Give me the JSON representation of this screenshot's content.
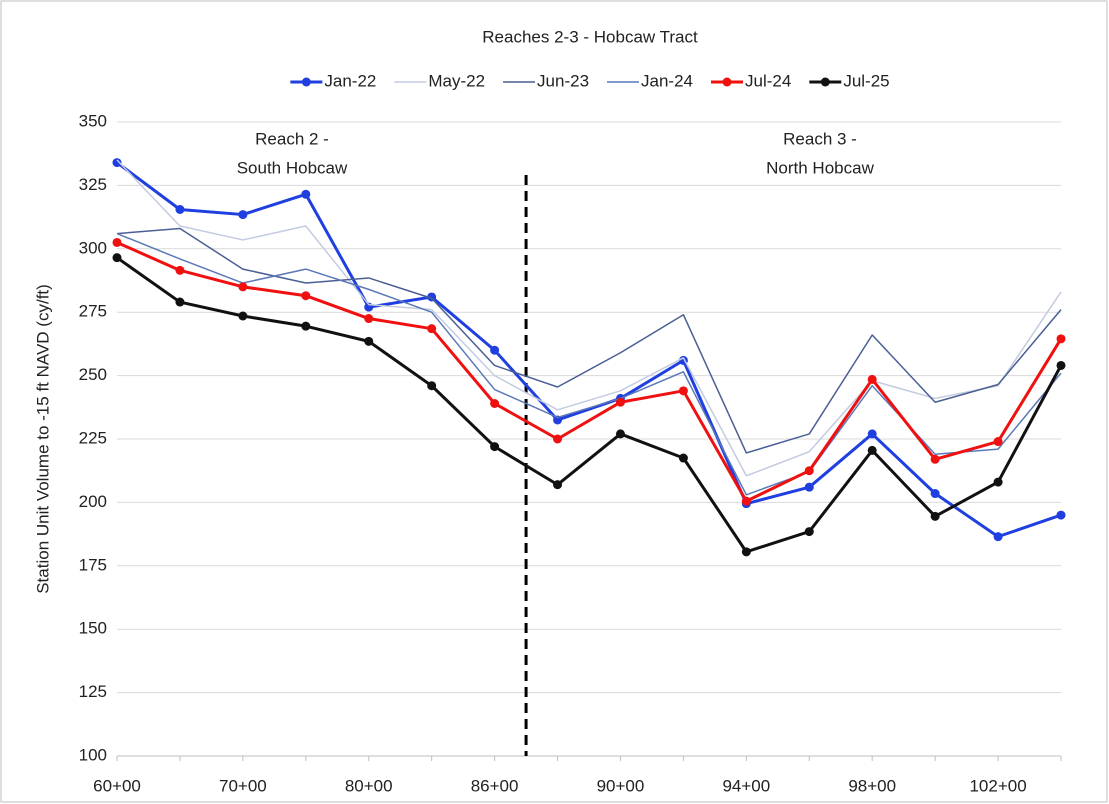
{
  "chart_data": {
    "type": "line",
    "title": "Reaches 2-3 - Hobcaw Tract",
    "y_label": "Station Unit Volume to -15 ft NAVD (cy/ft)",
    "categories": [
      "60+00",
      null,
      "70+00",
      null,
      "80+00",
      null,
      "86+00",
      null,
      "90+00",
      null,
      "94+00",
      null,
      "98+00",
      null,
      "102+00",
      null
    ],
    "ylim": [
      100,
      350
    ],
    "yticks": [
      100,
      125,
      150,
      175,
      200,
      225,
      250,
      275,
      300,
      325,
      350
    ],
    "grid": true,
    "legend": "top",
    "annotations": [
      [
        "Reach 2 -",
        "South Hobcaw"
      ],
      [
        "Reach 3 -",
        "North Hobcaw"
      ]
    ],
    "series": [
      {
        "name": "Jan-22",
        "color": "#1f3fe0",
        "markers": true,
        "values": [
          334,
          315.5,
          313.5,
          321.5,
          277,
          281,
          260,
          232.5,
          241,
          256,
          199.5,
          206,
          227,
          203.5,
          186.5,
          195
        ]
      },
      {
        "name": "May-22",
        "color": "#c3cbe0",
        "markers": false,
        "values": [
          335,
          309,
          303.5,
          309,
          278,
          276,
          250,
          236.5,
          244,
          257,
          210.5,
          220,
          248,
          241,
          246,
          283
        ]
      },
      {
        "name": "Jun-23",
        "color": "#4a5f94",
        "markers": false,
        "values": [
          306,
          308,
          292,
          286.5,
          288.5,
          280.5,
          254,
          245.5,
          259,
          274,
          219.5,
          227,
          266,
          239.5,
          246.5,
          276
        ]
      },
      {
        "name": "Jan-24",
        "color": "#5b79b8",
        "markers": false,
        "values": [
          306,
          296,
          286.5,
          292,
          284,
          275,
          244.5,
          233.5,
          241,
          251.5,
          203,
          212,
          246,
          219,
          221,
          251
        ]
      },
      {
        "name": "Jul-24",
        "color": "#f01010",
        "markers": true,
        "values": [
          302.5,
          291.5,
          285,
          281.5,
          272.5,
          268.5,
          239,
          225,
          239.5,
          244,
          200.5,
          212.5,
          248.5,
          217,
          224,
          264.5
        ]
      },
      {
        "name": "Jul-25",
        "color": "#111111",
        "markers": true,
        "values": [
          296.5,
          279,
          273.5,
          269.5,
          263.5,
          246,
          222,
          207,
          227,
          217.5,
          180.5,
          188.5,
          220.5,
          194.5,
          208,
          254
        ]
      }
    ]
  }
}
